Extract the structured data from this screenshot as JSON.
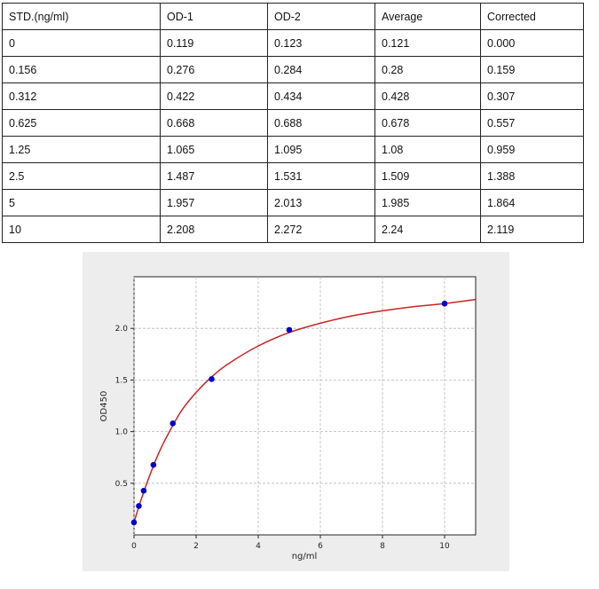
{
  "table": {
    "headers": [
      "STD.(ng/ml)",
      "OD-1",
      "OD-2",
      "Average",
      "Corrected"
    ],
    "rows": [
      [
        "0",
        "0.119",
        "0.123",
        "0.121",
        "0.000"
      ],
      [
        "0.156",
        "0.276",
        "0.284",
        "0.28",
        "0.159"
      ],
      [
        "0.312",
        "0.422",
        "0.434",
        "0.428",
        "0.307"
      ],
      [
        "0.625",
        "0.668",
        "0.688",
        "0.678",
        "0.557"
      ],
      [
        "1.25",
        "1.065",
        "1.095",
        "1.08",
        "0.959"
      ],
      [
        "2.5",
        "1.487",
        "1.531",
        "1.509",
        "1.388"
      ],
      [
        "5",
        "1.957",
        "2.013",
        "1.985",
        "1.864"
      ],
      [
        "10",
        "2.208",
        "2.272",
        "2.24",
        "2.119"
      ]
    ]
  },
  "chart_data": {
    "type": "scatter",
    "xlabel": "ng/ml",
    "ylabel": "OD450",
    "xlim": [
      0,
      11
    ],
    "ylim": [
      0,
      2.5
    ],
    "xticks": [
      0,
      2,
      4,
      6,
      8,
      10
    ],
    "yticks": [
      0.5,
      1.0,
      1.5,
      2.0
    ],
    "xtick_labels": [
      "0",
      "2",
      "4",
      "6",
      "8",
      "10"
    ],
    "ytick_labels": [
      "0.5",
      "1.0",
      "1.5",
      "2.0"
    ],
    "grid": true,
    "series": [
      {
        "kind": "points",
        "color": "#0000cc",
        "x": [
          0,
          0.156,
          0.312,
          0.625,
          1.25,
          2.5,
          5,
          10
        ],
        "y": [
          0.121,
          0.28,
          0.428,
          0.678,
          1.08,
          1.509,
          1.985,
          2.24
        ]
      },
      {
        "kind": "fit-curve",
        "color": "#cc2222",
        "x": [
          0,
          0.1,
          0.25,
          0.5,
          0.75,
          1,
          1.5,
          2,
          2.5,
          3,
          4,
          5,
          6,
          7,
          8,
          9,
          10,
          11
        ],
        "y": [
          0.12,
          0.22,
          0.36,
          0.57,
          0.76,
          0.92,
          1.19,
          1.38,
          1.53,
          1.65,
          1.83,
          1.96,
          2.05,
          2.12,
          2.17,
          2.21,
          2.24,
          2.28
        ]
      }
    ]
  }
}
